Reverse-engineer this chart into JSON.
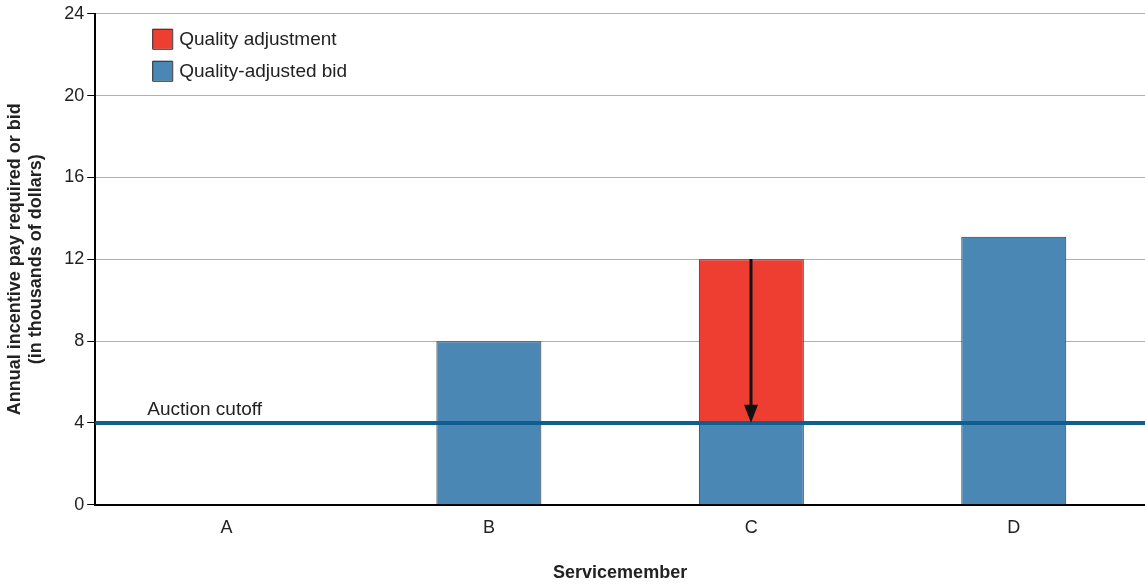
{
  "chart_data": {
    "type": "bar",
    "xlabel": "Servicemember",
    "ylabel": "Annual incentive pay required or bid\n(in thousands of dollars)",
    "categories": [
      "A",
      "B",
      "C",
      "D"
    ],
    "series": [
      {
        "name": "Quality-adjusted bid",
        "color": "#4a87b5",
        "values": [
          null,
          8,
          4,
          13.1
        ]
      },
      {
        "name": "Quality adjustment",
        "color": "#ee3e31",
        "values": [
          null,
          null,
          8,
          null
        ]
      }
    ],
    "stacked": true,
    "ylim": [
      0,
      24
    ],
    "yticks": [
      0,
      4,
      8,
      12,
      16,
      20,
      24
    ],
    "grid": "y",
    "legend": "top left",
    "ref_lines": [
      {
        "axis": "y",
        "value": 4,
        "label": "Auction cutoff",
        "color": "#0e5f8f"
      }
    ]
  }
}
